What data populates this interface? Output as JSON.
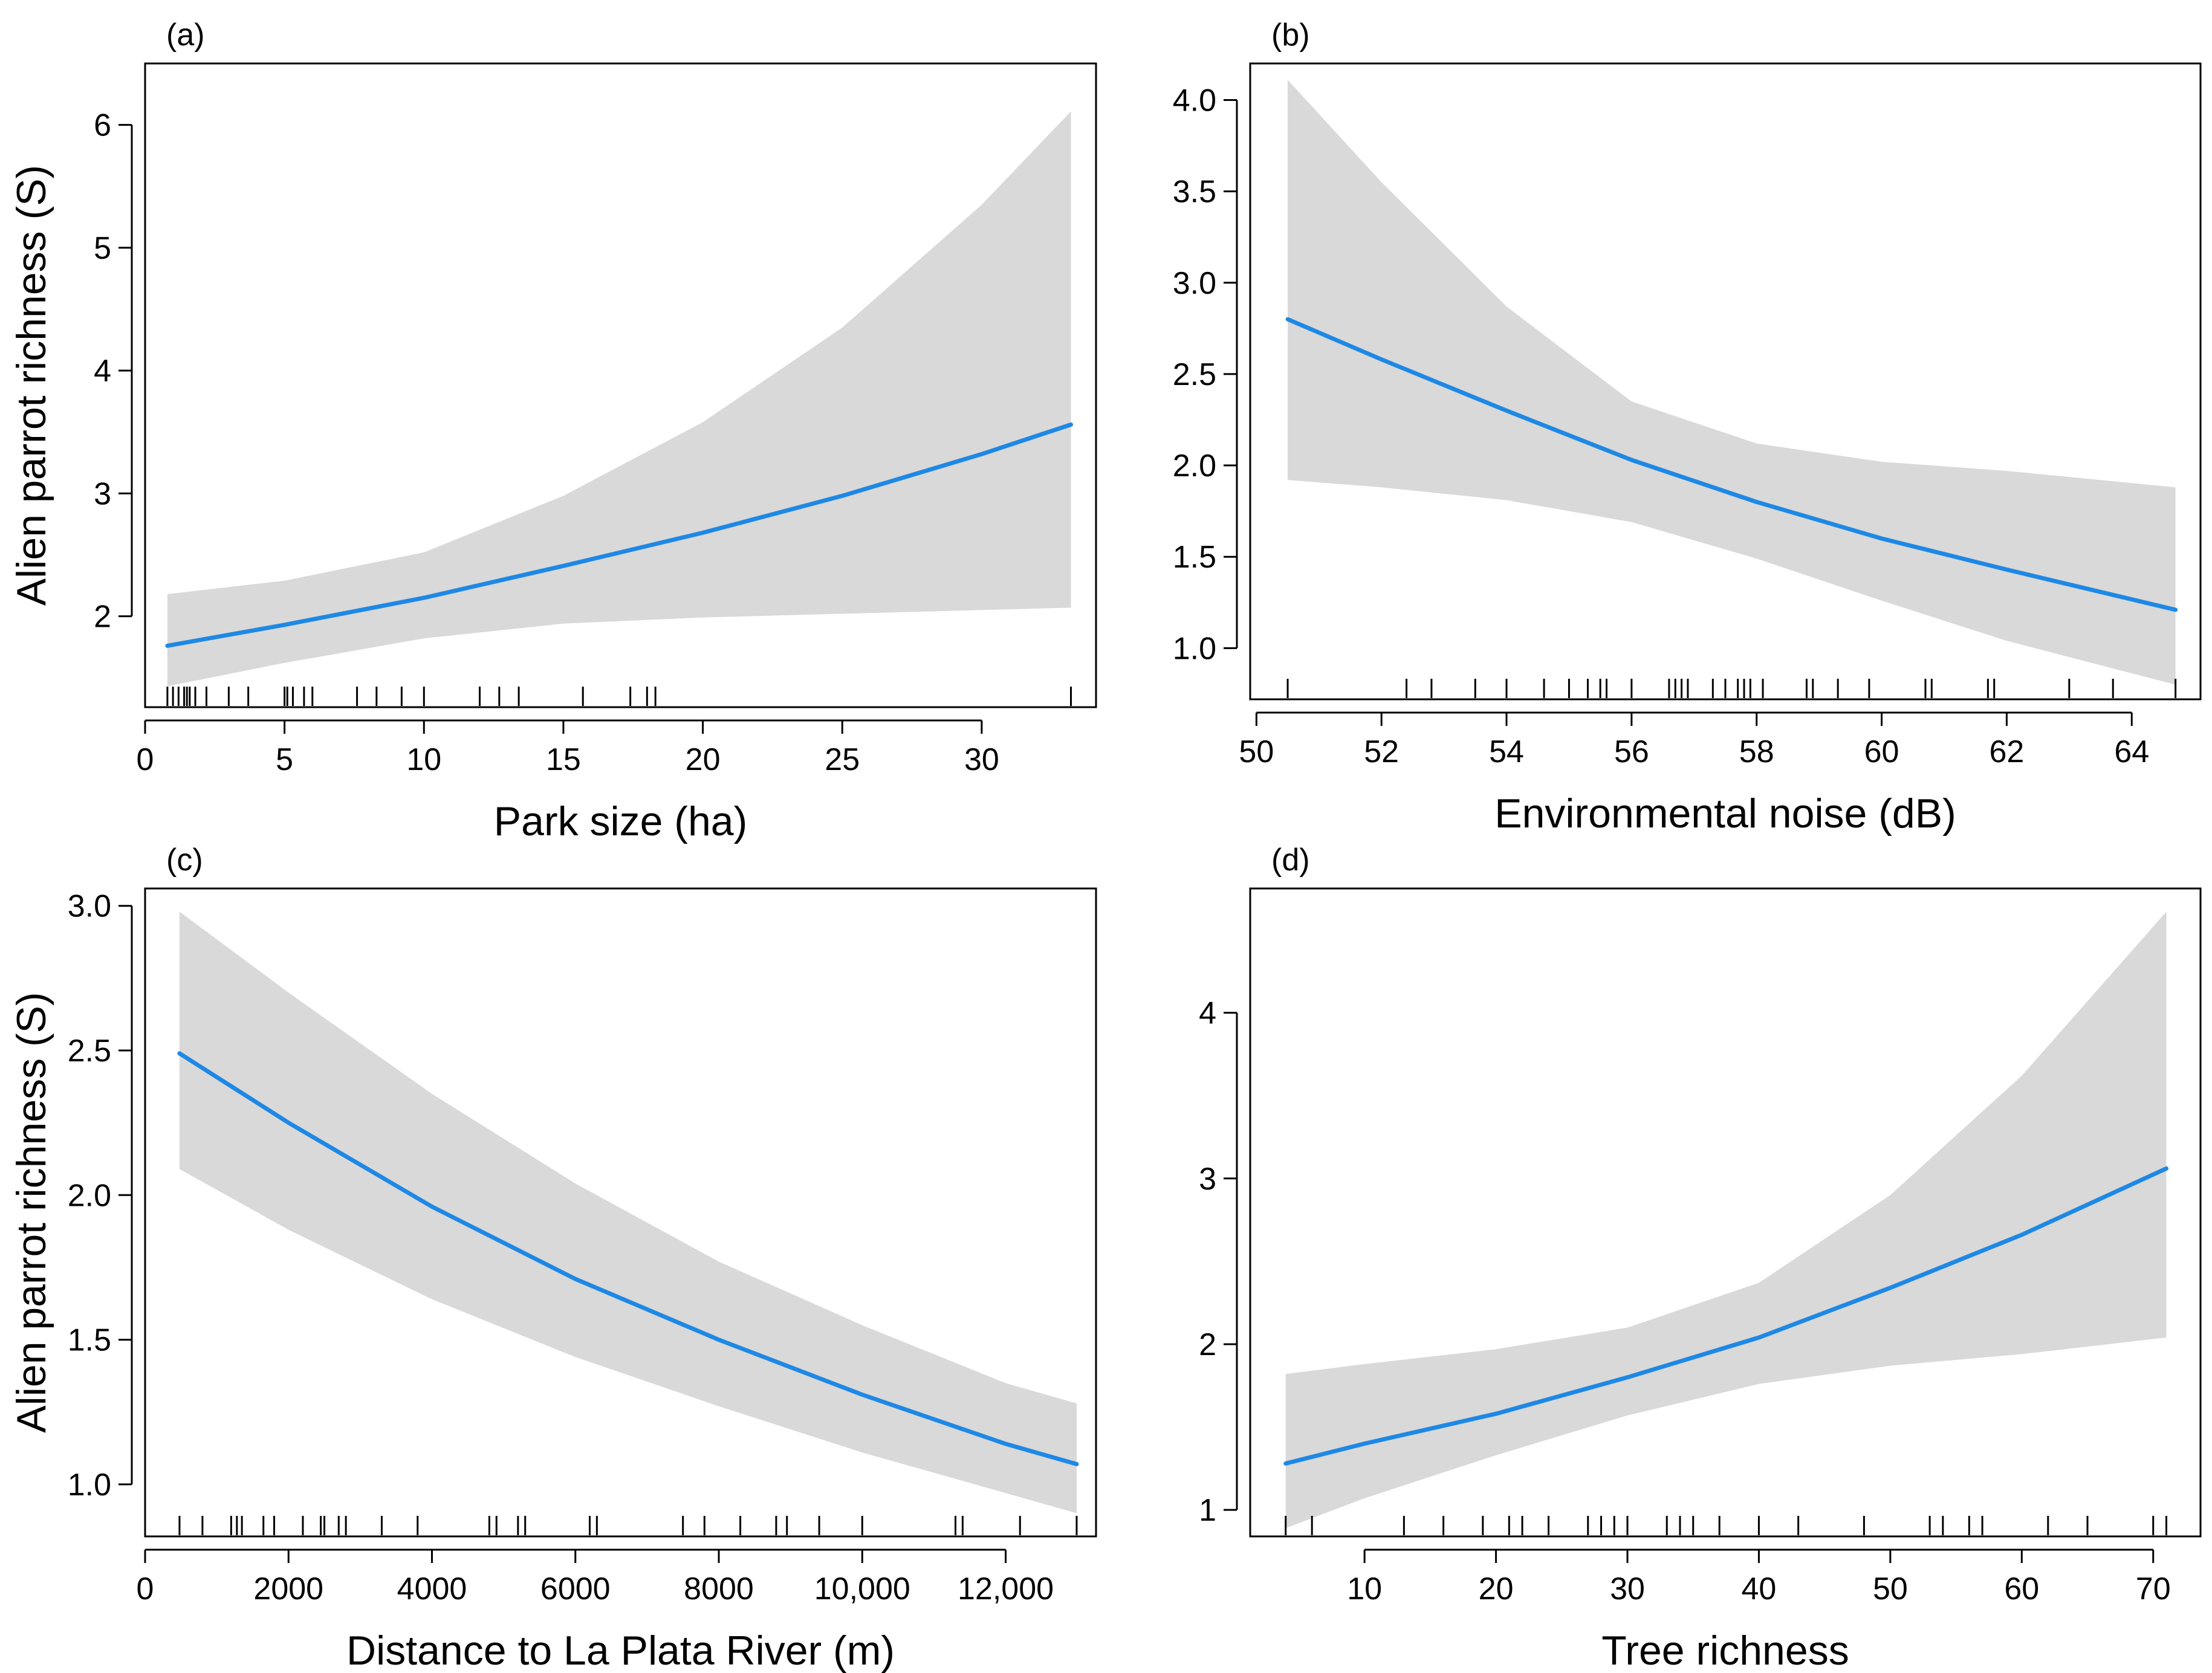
{
  "figure": {
    "background": "#ffffff",
    "band_color": "#d9d9d9",
    "line_color": "#1e88e5"
  },
  "chart_data": [
    {
      "type": "line",
      "panel_label": "(a)",
      "xlabel": "Park size (ha)",
      "ylabel": "Alien parrot richness (S)",
      "xlim": [
        0,
        34.1
      ],
      "ylim": [
        1.26,
        6.5
      ],
      "xticks": [
        {
          "v": 0,
          "label": "0"
        },
        {
          "v": 5,
          "label": "5"
        },
        {
          "v": 10,
          "label": "10"
        },
        {
          "v": 15,
          "label": "15"
        },
        {
          "v": 20,
          "label": "20"
        },
        {
          "v": 25,
          "label": "25"
        },
        {
          "v": 30,
          "label": "30"
        }
      ],
      "yticks": [
        {
          "v": 2,
          "label": "2"
        },
        {
          "v": 3,
          "label": "3"
        },
        {
          "v": 4,
          "label": "4"
        },
        {
          "v": 5,
          "label": "5"
        },
        {
          "v": 6,
          "label": "6"
        }
      ],
      "series": [
        {
          "name": "fit",
          "x": [
            0.8,
            5,
            10,
            15,
            20,
            25,
            30,
            33.2
          ],
          "y": [
            1.76,
            1.93,
            2.15,
            2.41,
            2.68,
            2.98,
            3.32,
            3.56
          ],
          "lower": [
            1.43,
            1.62,
            1.82,
            1.94,
            1.99,
            2.02,
            2.05,
            2.07
          ],
          "upper": [
            2.18,
            2.29,
            2.52,
            2.98,
            3.58,
            4.35,
            5.35,
            6.11
          ]
        }
      ],
      "rug": [
        0.8,
        1.0,
        1.2,
        1.4,
        1.5,
        1.6,
        1.8,
        2.2,
        3.0,
        3.7,
        5.0,
        5.1,
        5.3,
        5.7,
        6.0,
        7.6,
        8.3,
        9.2,
        10.0,
        12.0,
        12.7,
        13.4,
        15.7,
        17.4,
        18.0,
        18.3,
        33.2
      ]
    },
    {
      "type": "line",
      "panel_label": "(b)",
      "xlabel": "Environmental noise (dB)",
      "ylabel": "",
      "xlim": [
        49.9,
        65.1
      ],
      "ylim": [
        0.72,
        4.2
      ],
      "xticks": [
        {
          "v": 50,
          "label": "50"
        },
        {
          "v": 52,
          "label": "52"
        },
        {
          "v": 54,
          "label": "54"
        },
        {
          "v": 56,
          "label": "56"
        },
        {
          "v": 58,
          "label": "58"
        },
        {
          "v": 60,
          "label": "60"
        },
        {
          "v": 62,
          "label": "62"
        },
        {
          "v": 64,
          "label": "64"
        }
      ],
      "yticks": [
        {
          "v": 1.0,
          "label": "1.0"
        },
        {
          "v": 1.5,
          "label": "1.5"
        },
        {
          "v": 2.0,
          "label": "2.0"
        },
        {
          "v": 2.5,
          "label": "2.5"
        },
        {
          "v": 3.0,
          "label": "3.0"
        },
        {
          "v": 3.5,
          "label": "3.5"
        },
        {
          "v": 4.0,
          "label": "4.0"
        }
      ],
      "series": [
        {
          "name": "fit",
          "x": [
            50.5,
            52,
            54,
            56,
            58,
            60,
            62,
            64.7
          ],
          "y": [
            2.8,
            2.58,
            2.3,
            2.03,
            1.8,
            1.6,
            1.43,
            1.21
          ],
          "lower": [
            1.92,
            1.88,
            1.81,
            1.69,
            1.49,
            1.26,
            1.04,
            0.8
          ],
          "upper": [
            4.11,
            3.55,
            2.87,
            2.35,
            2.12,
            2.02,
            1.97,
            1.88
          ]
        }
      ],
      "rug": [
        50.5,
        52.4,
        52.8,
        53.5,
        54.0,
        54.6,
        55.0,
        55.3,
        55.5,
        55.6,
        56.0,
        56.6,
        56.7,
        56.8,
        56.9,
        57.3,
        57.5,
        57.7,
        57.8,
        57.9,
        58.1,
        58.8,
        58.9,
        59.3,
        59.8,
        60.7,
        60.8,
        61.7,
        61.8,
        63.0,
        63.7,
        64.7
      ]
    },
    {
      "type": "line",
      "panel_label": "(c)",
      "xlabel": "Distance to La Plata River (m)",
      "ylabel": "Alien parrot richness (S)",
      "xlim": [
        0,
        13260
      ],
      "ylim": [
        0.82,
        3.06
      ],
      "xticks": [
        {
          "v": 0,
          "label": "0"
        },
        {
          "v": 2000,
          "label": "2000"
        },
        {
          "v": 4000,
          "label": "4000"
        },
        {
          "v": 6000,
          "label": "6000"
        },
        {
          "v": 8000,
          "label": "8000"
        },
        {
          "v": 10000,
          "label": "10,000"
        },
        {
          "v": 12000,
          "label": "12,000"
        }
      ],
      "yticks": [
        {
          "v": 1.0,
          "label": "1.0"
        },
        {
          "v": 1.5,
          "label": "1.5"
        },
        {
          "v": 2.0,
          "label": "2.0"
        },
        {
          "v": 2.5,
          "label": "2.5"
        },
        {
          "v": 3.0,
          "label": "3.0"
        }
      ],
      "series": [
        {
          "name": "fit",
          "x": [
            480,
            2000,
            4000,
            6000,
            8000,
            10000,
            12000,
            12990
          ],
          "y": [
            2.49,
            2.25,
            1.96,
            1.71,
            1.5,
            1.31,
            1.14,
            1.07
          ],
          "lower": [
            2.09,
            1.88,
            1.64,
            1.44,
            1.27,
            1.11,
            0.97,
            0.9
          ],
          "upper": [
            2.98,
            2.7,
            2.35,
            2.04,
            1.77,
            1.55,
            1.35,
            1.28
          ]
        }
      ],
      "rug": [
        480,
        800,
        1200,
        1280,
        1350,
        1650,
        1800,
        2200,
        2450,
        2500,
        2700,
        2800,
        3300,
        3800,
        4800,
        4900,
        5200,
        5300,
        6200,
        6300,
        7500,
        7800,
        8300,
        8800,
        8950,
        9400,
        10000,
        11300,
        11400,
        12200,
        12990
      ]
    },
    {
      "type": "line",
      "panel_label": "(d)",
      "xlabel": "Tree richness",
      "ylabel": "",
      "xlim": [
        1.3,
        73.6
      ],
      "ylim": [
        0.84,
        4.75
      ],
      "xticks": [
        {
          "v": 10,
          "label": "10"
        },
        {
          "v": 20,
          "label": "20"
        },
        {
          "v": 30,
          "label": "30"
        },
        {
          "v": 40,
          "label": "40"
        },
        {
          "v": 50,
          "label": "50"
        },
        {
          "v": 60,
          "label": "60"
        },
        {
          "v": 70,
          "label": "70"
        }
      ],
      "yticks": [
        {
          "v": 1,
          "label": "1"
        },
        {
          "v": 2,
          "label": "2"
        },
        {
          "v": 3,
          "label": "3"
        },
        {
          "v": 4,
          "label": "4"
        }
      ],
      "series": [
        {
          "name": "fit",
          "x": [
            4,
            10,
            20,
            30,
            40,
            50,
            60,
            71
          ],
          "y": [
            1.28,
            1.4,
            1.58,
            1.8,
            2.04,
            2.34,
            2.66,
            3.06
          ],
          "lower": [
            0.89,
            1.07,
            1.33,
            1.57,
            1.76,
            1.87,
            1.94,
            2.04
          ],
          "upper": [
            1.82,
            1.88,
            1.97,
            2.1,
            2.37,
            2.9,
            3.62,
            4.61
          ]
        }
      ],
      "rug": [
        4,
        6,
        13,
        16,
        19,
        21,
        22,
        24,
        27,
        28,
        29,
        30,
        33,
        34,
        35,
        37,
        40,
        43,
        48,
        53,
        54,
        56,
        57,
        62,
        65,
        70,
        71
      ]
    }
  ]
}
